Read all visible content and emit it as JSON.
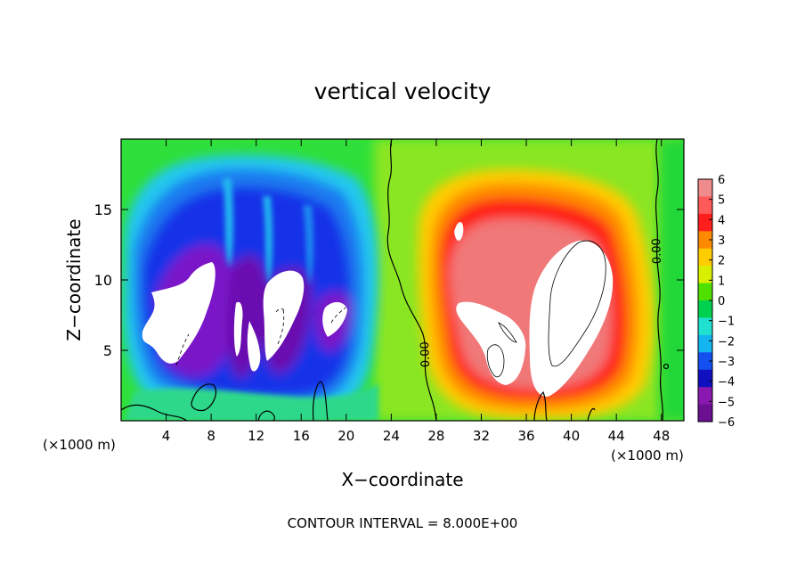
{
  "chart_data": {
    "type": "heatmap",
    "title": "vertical velocity",
    "xlabel": "X−coordinate",
    "ylabel": "Z−coordinate",
    "x_unit_left": "(×1000 m)",
    "x_unit_right": "(×1000 m)",
    "xlim": [
      0,
      50
    ],
    "ylim": [
      0,
      20
    ],
    "x_ticks": [
      "4",
      "8",
      "12",
      "16",
      "20",
      "24",
      "28",
      "32",
      "36",
      "40",
      "44",
      "48"
    ],
    "x_tick_values": [
      4,
      8,
      12,
      16,
      20,
      24,
      28,
      32,
      36,
      40,
      44,
      48
    ],
    "y_ticks": [
      "5",
      "10",
      "15"
    ],
    "y_tick_values": [
      5,
      10,
      15
    ],
    "colorbar": {
      "labels": [
        "6",
        "5",
        "4",
        "3",
        "2",
        "1",
        "0",
        "−1",
        "−2",
        "−3",
        "−4",
        "−5",
        "−6"
      ],
      "colors": [
        "#f08b8b",
        "#ff5a5a",
        "#ff1e1e",
        "#ff8a00",
        "#ffcc00",
        "#d8f000",
        "#50e000",
        "#00d050",
        "#20e0d0",
        "#14b4f0",
        "#1450f0",
        "#1010c0",
        "#8a18b0",
        "#6a1090"
      ]
    },
    "contour_labels": [
      "0.00",
      "0.00"
    ],
    "annotation": "CONTOUR INTERVAL = 8.000E+00"
  }
}
